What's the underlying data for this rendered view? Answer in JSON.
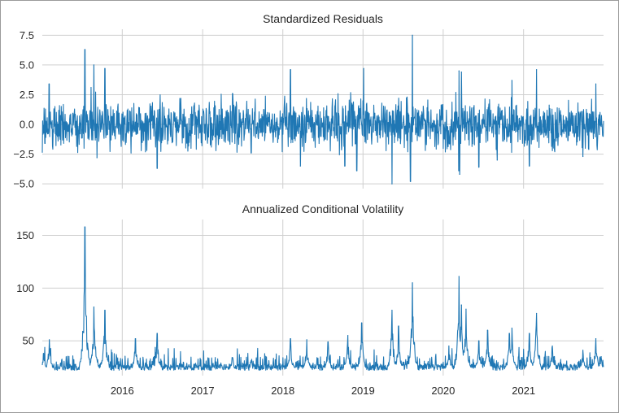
{
  "chart_data": [
    {
      "type": "line",
      "title": "Standardized Residuals",
      "xlabel": "",
      "ylabel": "",
      "x_range": [
        "2015-01-02",
        "2021-12-31"
      ],
      "ylim": [
        -5.4,
        8.0
      ],
      "y_ticks": [
        -5.0,
        -2.5,
        0.0,
        2.5,
        5.0,
        7.5
      ],
      "y_tick_labels": [
        "−5.0",
        "−2.5",
        "0.0",
        "2.5",
        "5.0",
        "7.5"
      ],
      "grid": true,
      "series": [
        {
          "color": "#1f77b4",
          "baseline_sd": 0.9,
          "points": [
            {
              "x": "2015-01-14",
              "y": -1.6
            },
            {
              "x": "2015-02-02",
              "y": 3.4
            },
            {
              "x": "2015-07-15",
              "y": 6.3
            },
            {
              "x": "2015-08-12",
              "y": 3.1
            },
            {
              "x": "2015-08-25",
              "y": 5.0
            },
            {
              "x": "2015-09-08",
              "y": -2.8
            },
            {
              "x": "2015-10-14",
              "y": 4.7
            },
            {
              "x": "2016-02-10",
              "y": -2.4
            },
            {
              "x": "2016-06-08",
              "y": -3.7
            },
            {
              "x": "2016-11-09",
              "y": -2.0
            },
            {
              "x": "2017-05-17",
              "y": 2.6
            },
            {
              "x": "2017-08-10",
              "y": -2.4
            },
            {
              "x": "2018-02-05",
              "y": 4.6
            },
            {
              "x": "2018-03-22",
              "y": -3.5
            },
            {
              "x": "2018-10-10",
              "y": -3.5
            },
            {
              "x": "2018-12-04",
              "y": -3.9
            },
            {
              "x": "2019-01-04",
              "y": 4.7
            },
            {
              "x": "2019-05-13",
              "y": -5.0
            },
            {
              "x": "2019-08-05",
              "y": -4.8
            },
            {
              "x": "2019-08-14",
              "y": 7.5
            },
            {
              "x": "2020-03-12",
              "y": -3.9
            },
            {
              "x": "2020-03-13",
              "y": 4.5
            },
            {
              "x": "2020-03-16",
              "y": -4.2
            },
            {
              "x": "2020-03-24",
              "y": 4.4
            },
            {
              "x": "2020-06-11",
              "y": -3.6
            },
            {
              "x": "2020-09-03",
              "y": -3.0
            },
            {
              "x": "2020-11-09",
              "y": 3.7
            },
            {
              "x": "2021-01-27",
              "y": -3.5
            },
            {
              "x": "2021-03-01",
              "y": 4.6
            },
            {
              "x": "2021-05-12",
              "y": -2.2
            },
            {
              "x": "2021-09-28",
              "y": -2.7
            },
            {
              "x": "2021-11-26",
              "y": 3.4
            },
            {
              "x": "2021-12-29",
              "y": -1.0
            }
          ]
        }
      ]
    },
    {
      "type": "line",
      "title": "Annualized Conditional Volatility",
      "xlabel": "",
      "ylabel": "",
      "x_range": [
        "2015-01-02",
        "2021-12-31"
      ],
      "x_ticks": [
        "2016-01-01",
        "2017-01-01",
        "2018-01-01",
        "2019-01-01",
        "2020-01-01",
        "2021-01-01"
      ],
      "x_tick_labels": [
        "2016",
        "2017",
        "2018",
        "2019",
        "2020",
        "2021"
      ],
      "ylim": [
        17,
        165
      ],
      "y_ticks": [
        50,
        100,
        150
      ],
      "y_tick_labels": [
        "50",
        "100",
        "150"
      ],
      "grid": true,
      "series": [
        {
          "color": "#1f77b4",
          "baseline": 22,
          "points": [
            {
              "x": "2015-01-08",
              "y": 38
            },
            {
              "x": "2015-02-03",
              "y": 51
            },
            {
              "x": "2015-07-15",
              "y": 158
            },
            {
              "x": "2015-08-25",
              "y": 82
            },
            {
              "x": "2015-10-14",
              "y": 79
            },
            {
              "x": "2016-03-01",
              "y": 52
            },
            {
              "x": "2016-06-08",
              "y": 57
            },
            {
              "x": "2017-05-17",
              "y": 34
            },
            {
              "x": "2018-02-05",
              "y": 52
            },
            {
              "x": "2018-04-20",
              "y": 51
            },
            {
              "x": "2018-07-26",
              "y": 49
            },
            {
              "x": "2018-10-24",
              "y": 55
            },
            {
              "x": "2018-12-26",
              "y": 67
            },
            {
              "x": "2019-05-13",
              "y": 79
            },
            {
              "x": "2019-06-12",
              "y": 64
            },
            {
              "x": "2019-08-14",
              "y": 105
            },
            {
              "x": "2020-01-27",
              "y": 45
            },
            {
              "x": "2020-03-13",
              "y": 111
            },
            {
              "x": "2020-03-24",
              "y": 84
            },
            {
              "x": "2020-04-14",
              "y": 80
            },
            {
              "x": "2020-06-11",
              "y": 50
            },
            {
              "x": "2020-07-21",
              "y": 60
            },
            {
              "x": "2020-10-28",
              "y": 57
            },
            {
              "x": "2020-11-09",
              "y": 62
            },
            {
              "x": "2021-01-27",
              "y": 57
            },
            {
              "x": "2021-03-01",
              "y": 76
            },
            {
              "x": "2021-05-12",
              "y": 45
            },
            {
              "x": "2021-09-28",
              "y": 41
            },
            {
              "x": "2021-11-26",
              "y": 52
            },
            {
              "x": "2021-12-20",
              "y": 35
            }
          ]
        }
      ]
    }
  ]
}
